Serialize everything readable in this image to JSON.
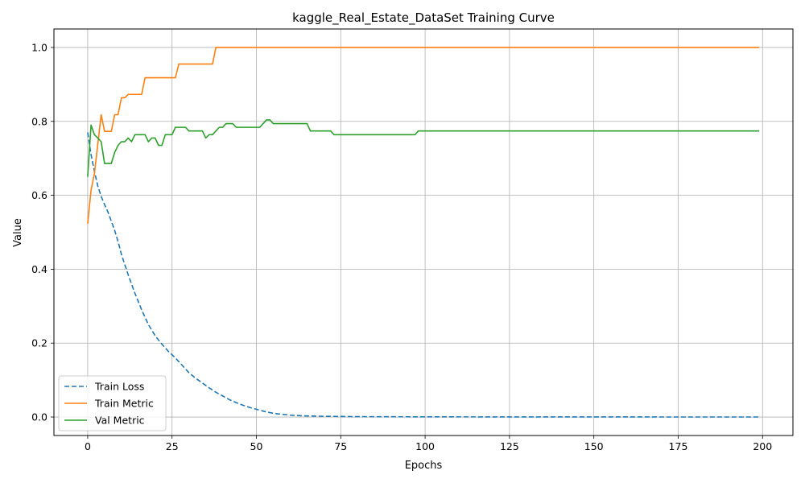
{
  "chart_data": {
    "type": "line",
    "title": "kaggle_Real_Estate_DataSet Training Curve",
    "xlabel": "Epochs",
    "ylabel": "Value",
    "xlim": [
      -10,
      209
    ],
    "ylim": [
      -0.05,
      1.05
    ],
    "x_ticks": [
      0,
      25,
      50,
      75,
      100,
      125,
      150,
      175,
      200
    ],
    "y_ticks": [
      0.0,
      0.2,
      0.4,
      0.6,
      0.8,
      1.0
    ],
    "x_tick_labels": [
      "0",
      "25",
      "50",
      "75",
      "100",
      "125",
      "150",
      "175",
      "200"
    ],
    "y_tick_labels": [
      "0.0",
      "0.2",
      "0.4",
      "0.6",
      "0.8",
      "1.0"
    ],
    "grid": true,
    "legend_position": "lower-left",
    "series": [
      {
        "name": "Train Loss",
        "color": "#1f77b4",
        "style": "dashed",
        "x": [
          0,
          1,
          2,
          3,
          4,
          5,
          6,
          7,
          8,
          9,
          10,
          12,
          14,
          16,
          18,
          20,
          22,
          24,
          26,
          28,
          30,
          32,
          34,
          36,
          38,
          40,
          42,
          44,
          46,
          48,
          50,
          52,
          54,
          56,
          58,
          60,
          62,
          65,
          70,
          75,
          80,
          90,
          100,
          120,
          150,
          175,
          199
        ],
        "values": [
          0.77,
          0.71,
          0.665,
          0.625,
          0.597,
          0.575,
          0.555,
          0.53,
          0.505,
          0.475,
          0.44,
          0.385,
          0.335,
          0.29,
          0.25,
          0.22,
          0.197,
          0.177,
          0.16,
          0.14,
          0.12,
          0.105,
          0.092,
          0.079,
          0.067,
          0.057,
          0.047,
          0.039,
          0.032,
          0.026,
          0.021,
          0.016,
          0.012,
          0.009,
          0.007,
          0.005,
          0.004,
          0.003,
          0.002,
          0.0015,
          0.001,
          0.0007,
          0.0005,
          0.0003,
          0.0002,
          0.0001,
          0.0001
        ]
      },
      {
        "name": "Train Metric",
        "color": "#ff7f0e",
        "style": "solid",
        "x": [
          0,
          1,
          2,
          4,
          5,
          6,
          7,
          8,
          9,
          10,
          11,
          12,
          13,
          14,
          15,
          16,
          17,
          18,
          19,
          20,
          25,
          26,
          27,
          28,
          30,
          35,
          37,
          38,
          39,
          40,
          50,
          75,
          100,
          125,
          150,
          175,
          199
        ],
        "values": [
          0.523,
          0.614,
          0.659,
          0.818,
          0.773,
          0.773,
          0.773,
          0.818,
          0.818,
          0.864,
          0.864,
          0.873,
          0.873,
          0.873,
          0.873,
          0.873,
          0.918,
          0.918,
          0.918,
          0.918,
          0.918,
          0.918,
          0.955,
          0.955,
          0.955,
          0.955,
          0.955,
          1.0,
          1.0,
          1.0,
          1.0,
          1.0,
          1.0,
          1.0,
          1.0,
          1.0,
          1.0
        ]
      },
      {
        "name": "Val Metric",
        "color": "#2ca02c",
        "style": "solid",
        "x": [
          0,
          1,
          2,
          3,
          4,
          5,
          6,
          7,
          8,
          9,
          10,
          11,
          12,
          13,
          14,
          15,
          16,
          17,
          18,
          19,
          20,
          21,
          22,
          23,
          24,
          25,
          26,
          27,
          28,
          29,
          30,
          31,
          32,
          33,
          34,
          35,
          36,
          37,
          38,
          39,
          40,
          41,
          42,
          43,
          44,
          50,
          51,
          52,
          53,
          54,
          55,
          60,
          65,
          66,
          70,
          72,
          73,
          80,
          90,
          97,
          98,
          100,
          125,
          150,
          175,
          199
        ],
        "values": [
          0.65,
          0.79,
          0.764,
          0.755,
          0.745,
          0.686,
          0.686,
          0.686,
          0.716,
          0.735,
          0.745,
          0.745,
          0.755,
          0.745,
          0.764,
          0.764,
          0.764,
          0.764,
          0.745,
          0.755,
          0.755,
          0.735,
          0.735,
          0.764,
          0.764,
          0.764,
          0.784,
          0.784,
          0.784,
          0.784,
          0.774,
          0.774,
          0.774,
          0.774,
          0.774,
          0.755,
          0.764,
          0.764,
          0.774,
          0.784,
          0.784,
          0.794,
          0.794,
          0.794,
          0.784,
          0.784,
          0.784,
          0.794,
          0.804,
          0.804,
          0.794,
          0.794,
          0.794,
          0.774,
          0.774,
          0.774,
          0.764,
          0.764,
          0.764,
          0.764,
          0.774,
          0.774,
          0.774,
          0.774,
          0.774,
          0.774
        ]
      }
    ]
  }
}
